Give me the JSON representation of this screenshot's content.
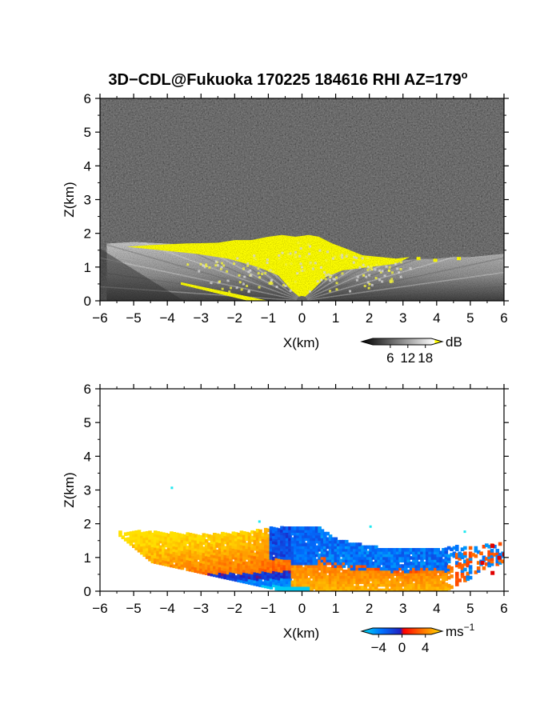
{
  "chart_data": [
    {
      "type": "heatmap",
      "panel": "top",
      "title": "3D−CDL@Fukuoka 170225 184616 RHI AZ=179",
      "title_superscript": "o",
      "xlabel": "X(km)",
      "ylabel": "Z(km)",
      "xlim": [
        -6,
        6
      ],
      "ylim": [
        0,
        6
      ],
      "x_ticks": [
        -6,
        -5,
        -4,
        -3,
        -2,
        -1,
        0,
        1,
        2,
        3,
        4,
        5,
        6
      ],
      "y_ticks": [
        0,
        1,
        2,
        3,
        4,
        5,
        6
      ],
      "x_tick_labels": [
        "−6",
        "−5",
        "−4",
        "−3",
        "−2",
        "−1",
        "0",
        "1",
        "2",
        "3",
        "4",
        "5",
        "6"
      ],
      "y_tick_labels": [
        "0",
        "1",
        "2",
        "3",
        "4",
        "5",
        "6"
      ],
      "field": "SNR",
      "background": "noise",
      "echo_top_profile": {
        "x": [
          -5.8,
          -5.0,
          -4.0,
          -3.0,
          -2.0,
          -1.5,
          -1.0,
          -0.5,
          0.0,
          0.5,
          1.0,
          1.5,
          2.0,
          2.5,
          3.0,
          3.5,
          4.0,
          4.5,
          5.0,
          5.5,
          6.0
        ],
        "z": [
          1.7,
          1.75,
          1.7,
          1.65,
          1.7,
          1.75,
          1.85,
          1.9,
          1.9,
          1.85,
          1.5,
          1.4,
          1.3,
          1.25,
          1.2,
          1.25,
          1.25,
          1.3,
          1.3,
          1.35,
          1.4
        ]
      },
      "colorbar": {
        "unit": "dB",
        "ticks": [
          6,
          12,
          18
        ],
        "tick_labels": [
          "6",
          "12",
          "18"
        ],
        "range": [
          0,
          20
        ],
        "colors": [
          "#000000",
          "#ffffff",
          "#ffff00"
        ]
      }
    },
    {
      "type": "heatmap",
      "panel": "bottom",
      "xlabel": "X(km)",
      "ylabel": "Z(km)",
      "xlim": [
        -6,
        6
      ],
      "ylim": [
        0,
        6
      ],
      "x_ticks": [
        -6,
        -5,
        -4,
        -3,
        -2,
        -1,
        0,
        1,
        2,
        3,
        4,
        5,
        6
      ],
      "y_ticks": [
        0,
        1,
        2,
        3,
        4,
        5,
        6
      ],
      "x_tick_labels": [
        "−6",
        "−5",
        "−4",
        "−3",
        "−2",
        "−1",
        "0",
        "1",
        "2",
        "3",
        "4",
        "5",
        "6"
      ],
      "y_tick_labels": [
        "0",
        "1",
        "2",
        "3",
        "4",
        "5",
        "6"
      ],
      "field": "radial velocity",
      "colorbar": {
        "unit": "ms",
        "unit_superscript": "−1",
        "ticks": [
          -4,
          0,
          4
        ],
        "tick_labels": [
          "−4",
          "0",
          "4"
        ],
        "range": [
          -5,
          5
        ],
        "colors": [
          "#00e0f0",
          "#0060ff",
          "#2020d0",
          "#ff0000",
          "#ff7000",
          "#ffe000"
        ]
      }
    }
  ]
}
